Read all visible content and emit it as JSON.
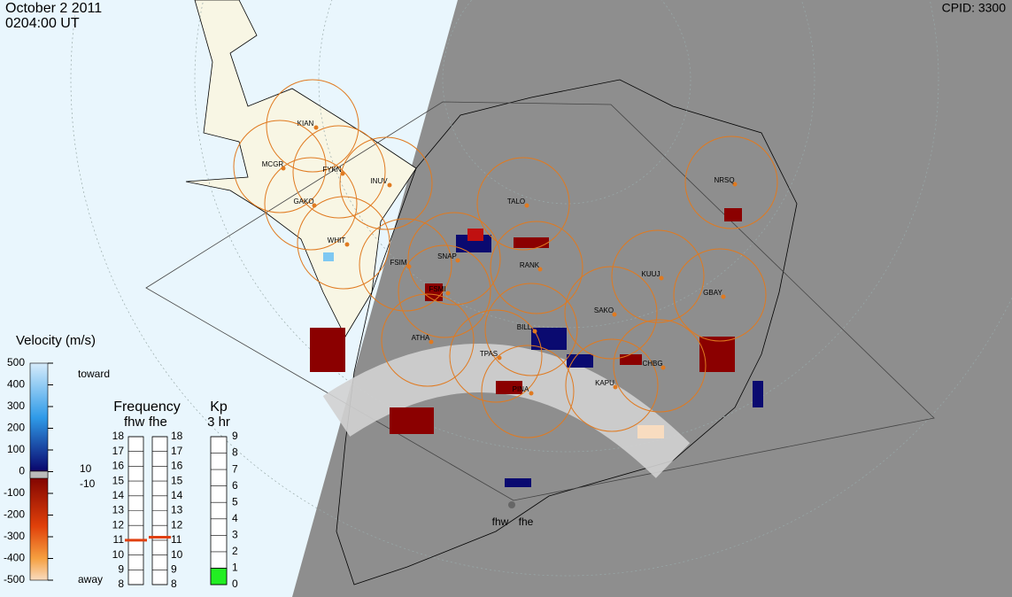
{
  "header": {
    "date": "October 2 2011",
    "time": "0204:00 UT",
    "cpid": "CPID: 3300"
  },
  "stations": [
    "KIAN",
    "MCGR",
    "FYKN",
    "INUV",
    "GAKO",
    "WHIT",
    "FSIM",
    "SNAP",
    "FSMI",
    "RANK",
    "TALO",
    "NRSQ",
    "KUUJ",
    "GBAY",
    "SAKO",
    "ATHA",
    "BILL",
    "TPAS",
    "PINA",
    "KAPU",
    "CHBG"
  ],
  "radars": [
    "fhw",
    "fhe"
  ],
  "velocity_scale": {
    "title": "Velocity (m/s)",
    "ticks": [
      "500",
      "400",
      "300",
      "200",
      "100",
      "0",
      "-100",
      "-200",
      "-300",
      "-400",
      "-500"
    ],
    "toward": "toward",
    "away": "away",
    "ground_scatter": [
      "10",
      "-10"
    ]
  },
  "frequency": {
    "title": "Frequency",
    "columns": [
      "fhw",
      "fhe"
    ],
    "ticks": [
      18,
      17,
      16,
      15,
      14,
      13,
      12,
      11,
      10,
      9,
      8
    ],
    "values": [
      11.0,
      11.2
    ]
  },
  "kp": {
    "title": "Kp",
    "subtitle": "3 hr",
    "ticks": [
      9,
      8,
      7,
      6,
      5,
      4,
      3,
      2,
      1,
      0
    ],
    "value": 1
  }
}
